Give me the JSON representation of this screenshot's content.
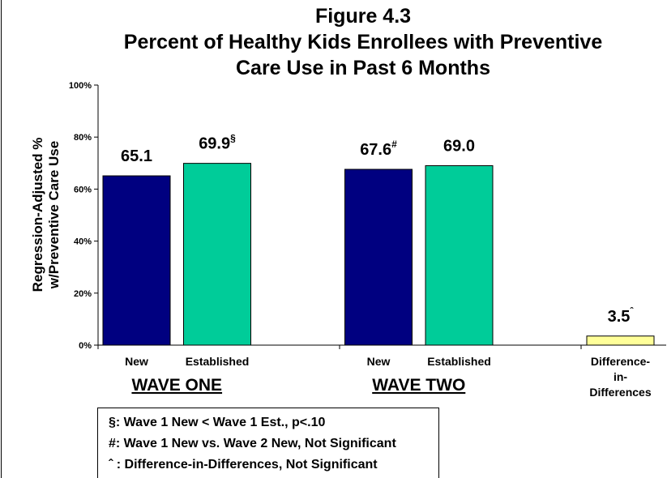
{
  "chart_data": {
    "type": "bar",
    "title": [
      "Figure 4.3",
      "Percent of Healthy Kids Enrollees with Preventive",
      "Care Use in Past 6 Months"
    ],
    "ylabel": [
      "Regression-Adjusted %",
      "w/Preventive Care Use"
    ],
    "categories": [
      "New",
      "Established",
      "New",
      "Established",
      [
        "Difference-",
        "in-",
        "Differences"
      ]
    ],
    "values": [
      65.1,
      69.9,
      67.6,
      69.0,
      3.5
    ],
    "value_labels": [
      "65.1",
      "69.9",
      "67.6",
      "69.0",
      "3.5"
    ],
    "superscripts": {
      "1": "§",
      "2": "#",
      "4": "ˆ"
    },
    "colors": [
      "#000080",
      "#00cc99",
      "#000080",
      "#00cc99",
      "#ffff99"
    ],
    "groups": [
      "WAVE ONE",
      "WAVE TWO"
    ],
    "ylim": [
      0,
      100
    ],
    "yticks": [
      {
        "value": 0,
        "label": "0%"
      },
      {
        "value": 20,
        "label": "20%"
      },
      {
        "value": 40,
        "label": "40%"
      },
      {
        "value": 60,
        "label": "60%"
      },
      {
        "value": 80,
        "label": "80%"
      },
      {
        "value": 100,
        "label": "100%"
      }
    ],
    "notes": [
      "§: Wave 1 New < Wave 1 Est., p<.10",
      "#: Wave 1 New vs. Wave 2 New, Not Significant",
      "ˆ : Difference-in-Differences, Not Significant"
    ]
  }
}
